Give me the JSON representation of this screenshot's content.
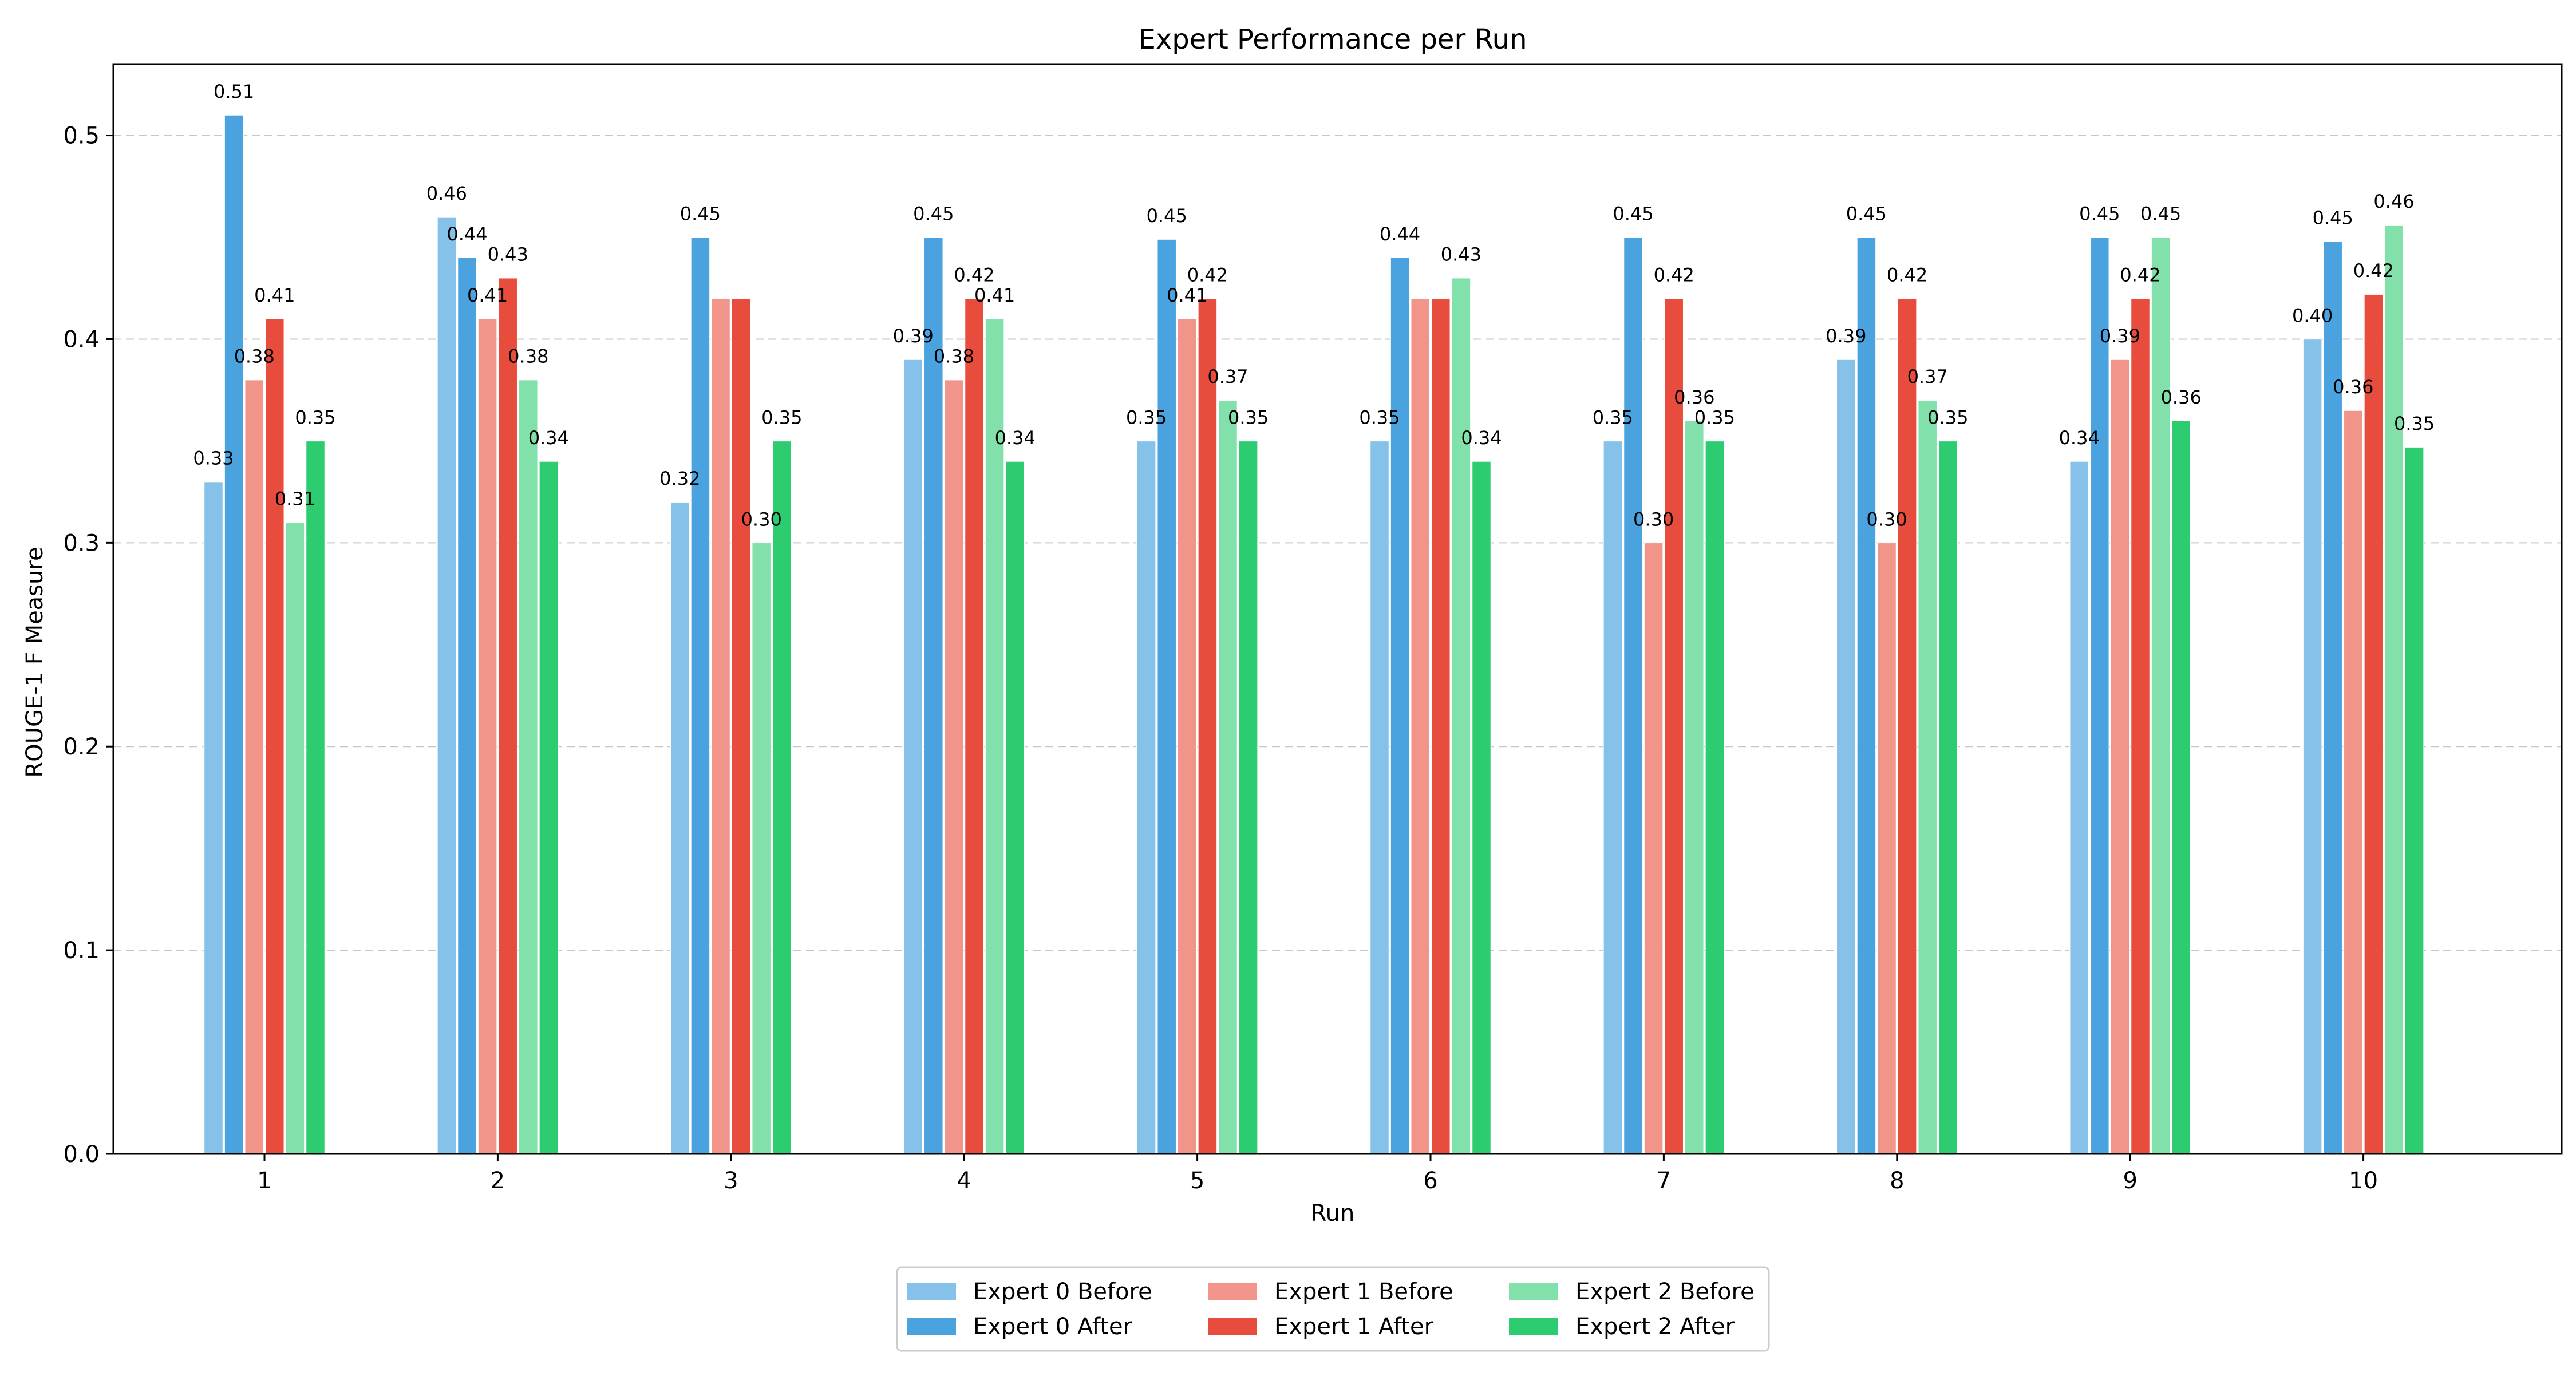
{
  "chart_data": {
    "type": "bar",
    "title": "Expert Performance per Run",
    "xlabel": "Run",
    "ylabel": "ROUGE-1 F Measure",
    "categories": [
      "1",
      "2",
      "3",
      "4",
      "5",
      "6",
      "7",
      "8",
      "9",
      "10"
    ],
    "ylim": [
      0,
      0.535
    ],
    "yticks": [
      0.0,
      0.1,
      0.2,
      0.3,
      0.4,
      0.5
    ],
    "ytick_labels": [
      "0.0",
      "0.1",
      "0.2",
      "0.3",
      "0.4",
      "0.5"
    ],
    "grid": "y, dashed",
    "legend_position": "bottom-center",
    "series": [
      {
        "name": "Expert 0 Before",
        "color": "#85c1e9",
        "values": [
          0.33,
          0.46,
          0.32,
          0.39,
          0.35,
          0.35,
          0.35,
          0.39,
          0.34,
          0.4
        ],
        "labels": [
          "0.33",
          "0.46",
          "0.32",
          "0.39",
          "0.35",
          "0.35",
          "0.35",
          "0.39",
          "0.34",
          "0.40"
        ]
      },
      {
        "name": "Expert 0 After",
        "color": "#4aa3df",
        "values": [
          0.51,
          0.44,
          0.45,
          0.45,
          0.449,
          0.44,
          0.45,
          0.45,
          0.45,
          0.448
        ],
        "labels": [
          "0.51",
          "0.44",
          "0.45",
          "0.45",
          "0.45",
          "0.44",
          "0.45",
          "0.45",
          "0.45",
          "0.45"
        ]
      },
      {
        "name": "Expert 1 Before",
        "color": "#f1948a",
        "values": [
          0.38,
          0.41,
          0.42,
          0.38,
          0.41,
          0.42,
          0.3,
          0.3,
          0.39,
          0.365
        ],
        "labels": [
          "0.38",
          "0.41",
          "",
          "0.38",
          "0.41",
          "",
          "0.30",
          "0.30",
          "0.39",
          "0.36"
        ]
      },
      {
        "name": "Expert 1 After",
        "color": "#e74c3c",
        "values": [
          0.41,
          0.43,
          0.42,
          0.42,
          0.42,
          0.42,
          0.42,
          0.42,
          0.42,
          0.422
        ],
        "labels": [
          "0.41",
          "0.43",
          "",
          "0.42",
          "0.42",
          "",
          "0.42",
          "0.42",
          "0.42",
          "0.42"
        ]
      },
      {
        "name": "Expert 2 Before",
        "color": "#82e0aa",
        "values": [
          0.31,
          0.38,
          0.3,
          0.41,
          0.37,
          0.43,
          0.36,
          0.37,
          0.45,
          0.456
        ],
        "labels": [
          "0.31",
          "0.38",
          "0.30",
          "0.41",
          "0.37",
          "0.43",
          "0.36",
          "0.37",
          "0.45",
          "0.46"
        ]
      },
      {
        "name": "Expert 2 After",
        "color": "#2ecc71",
        "values": [
          0.35,
          0.34,
          0.35,
          0.34,
          0.35,
          0.34,
          0.35,
          0.35,
          0.36,
          0.347
        ],
        "labels": [
          "0.35",
          "0.34",
          "0.35",
          "0.34",
          "0.35",
          "0.34",
          "0.35",
          "0.35",
          "0.36",
          "0.35"
        ]
      }
    ]
  }
}
